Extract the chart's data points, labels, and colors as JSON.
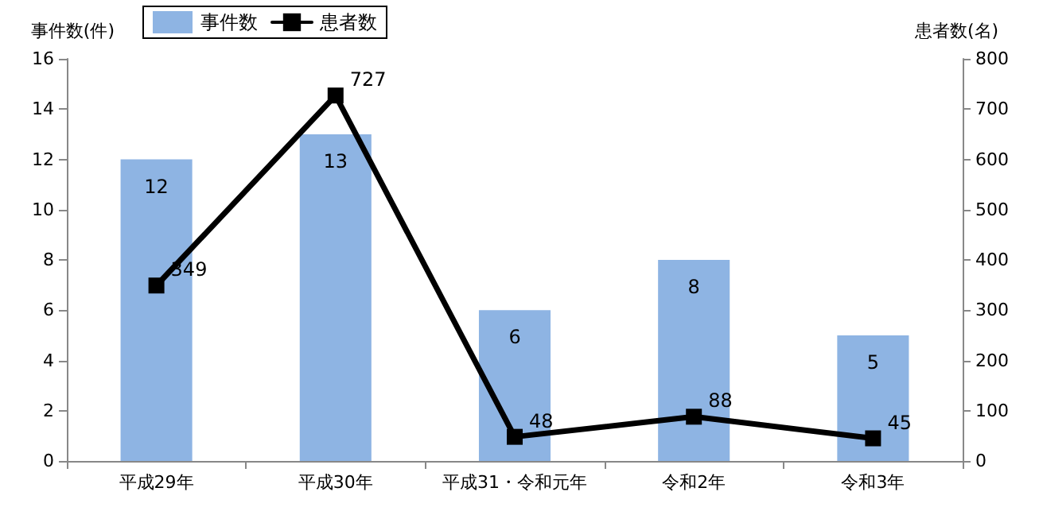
{
  "chart_data": {
    "type": "bar",
    "categories": [
      "平成29年",
      "平成30年",
      "平成31・令和元年",
      "令和2年",
      "令和3年"
    ],
    "series": [
      {
        "name": "事件数",
        "color": "#8eb4e3",
        "values": [
          12,
          13,
          6,
          8,
          5
        ]
      },
      {
        "name": "患者数",
        "type": "line",
        "axis": "y2",
        "color": "#000000",
        "values": [
          349,
          727,
          48,
          88,
          45
        ]
      }
    ],
    "ylabel": "事件数(件)",
    "y2label": "患者数(名)",
    "ylim": [
      0,
      16
    ],
    "yticks": [
      0,
      2,
      4,
      6,
      8,
      10,
      12,
      14,
      16
    ],
    "y2lim": [
      0,
      800
    ],
    "y2ticks": [
      0,
      100,
      200,
      300,
      400,
      500,
      600,
      700,
      800
    ],
    "data_labels": true,
    "legend": "top left",
    "grid": false,
    "marker": "square",
    "line_style": "solid"
  }
}
